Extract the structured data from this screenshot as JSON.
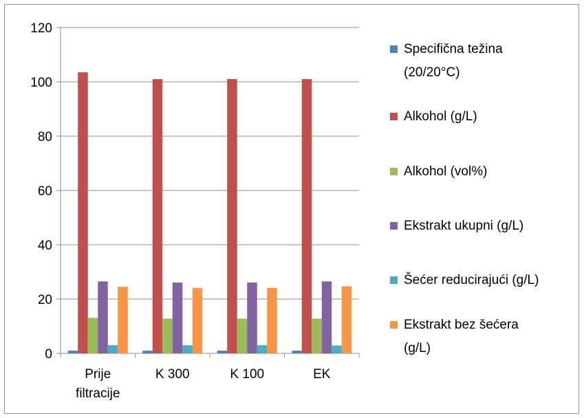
{
  "chart_data": {
    "type": "bar",
    "categories": [
      [
        "Prije",
        "filtracije"
      ],
      [
        "K 300"
      ],
      [
        "K 100"
      ],
      [
        "EK"
      ]
    ],
    "series": [
      {
        "name": [
          "Specifična težina",
          "(20/20°C)"
        ],
        "color": "#4f81bd",
        "values": [
          1.0,
          1.0,
          1.0,
          1.0
        ]
      },
      {
        "name": [
          "Alkohol (g/L)"
        ],
        "color": "#c0504d",
        "values": [
          103.5,
          101,
          101,
          101
        ]
      },
      {
        "name": [
          "Alkohol (vol%)"
        ],
        "color": "#9bbb59",
        "values": [
          13.1,
          12.8,
          12.8,
          12.8
        ]
      },
      {
        "name": [
          "Ekstrakt ukupni (g/L)"
        ],
        "color": "#8064a2",
        "values": [
          26.5,
          26.1,
          26.1,
          26.5
        ]
      },
      {
        "name": [
          "Šećer reducirajući (g/L)"
        ],
        "color": "#4bacc6",
        "values": [
          3.0,
          3.0,
          3.0,
          2.9
        ]
      },
      {
        "name": [
          "Ekstrakt bez šećera",
          "(g/L)"
        ],
        "color": "#f79646",
        "values": [
          24.5,
          24.1,
          24.1,
          24.7
        ]
      }
    ],
    "y_ticks": [
      "0",
      "20",
      "40",
      "60",
      "80",
      "100",
      "120"
    ],
    "ylim": [
      0,
      120
    ],
    "grid": true,
    "legend_position": "right"
  }
}
